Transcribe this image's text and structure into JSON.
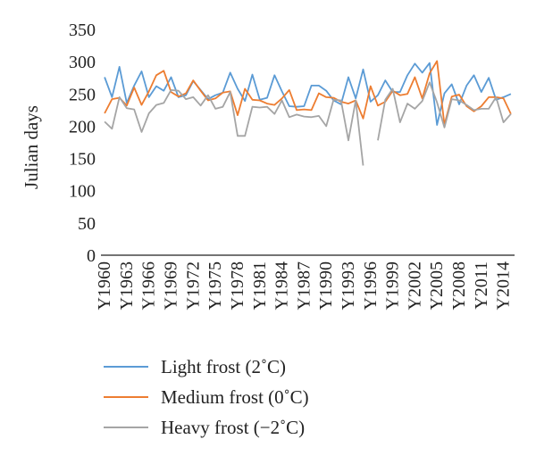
{
  "chart_data": {
    "type": "line",
    "ylabel": "Julian days",
    "xlabel": "",
    "ylim": [
      0,
      350
    ],
    "yticks": [
      0,
      50,
      100,
      150,
      200,
      250,
      300,
      350
    ],
    "grid": false,
    "legend_position": "bottom-left",
    "x": [
      "Y1960",
      "Y1961",
      "Y1962",
      "Y1963",
      "Y1964",
      "Y1965",
      "Y1966",
      "Y1967",
      "Y1968",
      "Y1969",
      "Y1970",
      "Y1971",
      "Y1972",
      "Y1973",
      "Y1974",
      "Y1975",
      "Y1976",
      "Y1977",
      "Y1978",
      "Y1979",
      "Y1980",
      "Y1981",
      "Y1982",
      "Y1983",
      "Y1984",
      "Y1985",
      "Y1986",
      "Y1987",
      "Y1988",
      "Y1989",
      "Y1990",
      "Y1991",
      "Y1992",
      "Y1993",
      "Y1994",
      "Y1995",
      "Y1996",
      "Y1997",
      "Y1998",
      "Y1999",
      "Y2000",
      "Y2001",
      "Y2002",
      "Y2003",
      "Y2004",
      "Y2005",
      "Y2006",
      "Y2007",
      "Y2008",
      "Y2009",
      "Y2010",
      "Y2011",
      "Y2012",
      "Y2013",
      "Y2014",
      "Y2015"
    ],
    "x_tick_labels": [
      "Y1960",
      "Y1963",
      "Y1966",
      "Y1969",
      "Y1972",
      "Y1975",
      "Y1978",
      "Y1981",
      "Y1984",
      "Y1987",
      "Y1990",
      "Y1993",
      "Y1996",
      "Y1999",
      "Y2002",
      "Y2005",
      "Y2008",
      "Y2011",
      "Y2014"
    ],
    "series": [
      {
        "name": "Light frost (2˚C)",
        "color": "#5b9bd5",
        "values": [
          276,
          245,
          292,
          236,
          263,
          285,
          245,
          262,
          255,
          276,
          245,
          248,
          270,
          256,
          242,
          248,
          252,
          283,
          258,
          239,
          280,
          241,
          244,
          279,
          254,
          231,
          230,
          231,
          263,
          263,
          255,
          240,
          234,
          276,
          243,
          288,
          238,
          248,
          271,
          253,
          253,
          279,
          297,
          283,
          298,
          202,
          251,
          265,
          234,
          263,
          279,
          253,
          275,
          241,
          245,
          250
        ]
      },
      {
        "name": "Medium frost (0˚C)",
        "color": "#ed7d31",
        "values": [
          220,
          242,
          244,
          232,
          260,
          233,
          254,
          279,
          286,
          253,
          246,
          251,
          271,
          255,
          240,
          243,
          252,
          254,
          217,
          258,
          241,
          240,
          235,
          233,
          243,
          256,
          225,
          226,
          225,
          251,
          245,
          244,
          238,
          235,
          240,
          212,
          262,
          232,
          238,
          255,
          248,
          250,
          276,
          243,
          282,
          301,
          202,
          246,
          249,
          231,
          223,
          231,
          245,
          245,
          243,
          219
        ]
      },
      {
        "name": "Heavy frost (−2˚C)",
        "color": "#a5a5a5",
        "values": [
          207,
          196,
          245,
          228,
          226,
          191,
          220,
          233,
          236,
          256,
          255,
          242,
          245,
          232,
          248,
          227,
          230,
          253,
          185,
          185,
          230,
          229,
          230,
          219,
          240,
          214,
          218,
          215,
          214,
          216,
          200,
          241,
          240,
          178,
          240,
          139,
          null,
          178,
          241,
          258,
          206,
          235,
          227,
          239,
          268,
          237,
          198,
          242,
          240,
          233,
          225,
          227,
          227,
          245,
          206,
          219
        ]
      }
    ]
  }
}
